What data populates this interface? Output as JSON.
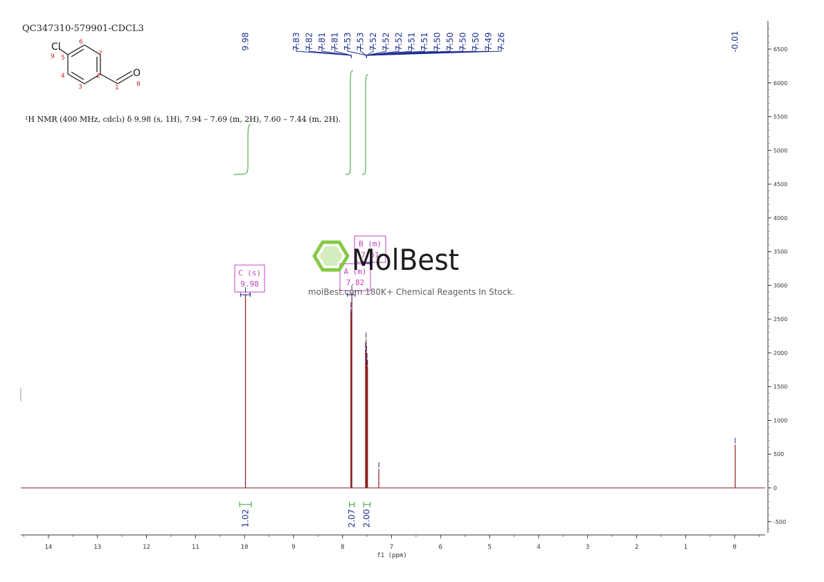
{
  "sample_id": "QC347310-579901-CDCL3",
  "structure": {
    "atoms": {
      "cl": "Cl",
      "o": "O"
    },
    "numbers": [
      "1",
      "2",
      "3",
      "4",
      "5",
      "6",
      "7",
      "8",
      "9"
    ]
  },
  "nmr_description": "¹H NMR (400 MHz, cdcl₃) δ 9.98 (s, 1H), 7.94 – 7.69 (m, 2H), 7.60 – 7.44 (m, 2H).",
  "watermark": {
    "brand": "MolBest",
    "tagline": "molBest.com 180K+ Chemical Reagents In Stock."
  },
  "colors": {
    "spectrum": "#8b1a1a",
    "integral": "#2e9d2e",
    "peak_label": "#1f2f8f",
    "multiplet": "#c040c0",
    "atom_number": "#cc2222",
    "logo": "#7ec93a"
  },
  "chart_data": {
    "type": "line",
    "xlabel": "f1 (ppm)",
    "xlim": [
      14.6,
      -0.6
    ],
    "ylim": [
      -700,
      6900
    ],
    "x_ticks": [
      14,
      13,
      12,
      11,
      10,
      9,
      8,
      7,
      6,
      5,
      4,
      3,
      2,
      1,
      0
    ],
    "y_ticks": [
      -500,
      0,
      500,
      1000,
      1500,
      2000,
      2500,
      3000,
      3500,
      4000,
      4500,
      5000,
      5500,
      6000,
      6500
    ],
    "series": [
      {
        "peaks": [
          {
            "ppm": 9.98,
            "height": 2870
          },
          {
            "ppm": 7.83,
            "height": 2650
          },
          {
            "ppm": 7.82,
            "height": 2500
          },
          {
            "ppm": 7.81,
            "height": 2900
          },
          {
            "ppm": 7.53,
            "height": 2050
          },
          {
            "ppm": 7.52,
            "height": 2200
          },
          {
            "ppm": 7.51,
            "height": 2000
          },
          {
            "ppm": 7.5,
            "height": 1900
          },
          {
            "ppm": 7.49,
            "height": 1800
          },
          {
            "ppm": 7.26,
            "height": 280
          },
          {
            "ppm": -0.01,
            "height": 640
          }
        ]
      }
    ],
    "peak_labels": {
      "group1": [
        "9.98"
      ],
      "group2": [
        "7.83",
        "7.82",
        "7.81",
        "7.81",
        "7.53",
        "7.53",
        "7.52",
        "7.52",
        "7.52",
        "7.51",
        "7.51",
        "7.50",
        "7.50",
        "7.50",
        "7.50",
        "7.49",
        "7.26"
      ],
      "group3": [
        "-0.01"
      ]
    },
    "multiplets": [
      {
        "label": "C (s)",
        "value": "9.98",
        "range": [
          10.08,
          9.88
        ]
      },
      {
        "label": "A (m)",
        "value": "7.82",
        "range": [
          7.9,
          7.74
        ]
      },
      {
        "label": "B (m)",
        "value": "7.51",
        "range": [
          7.58,
          7.44
        ]
      }
    ],
    "integrals": [
      {
        "value": "1.02",
        "from": 10.1,
        "to": 9.86
      },
      {
        "value": "2.07",
        "from": 7.86,
        "to": 7.76
      },
      {
        "value": "2.00",
        "from": 7.57,
        "to": 7.44
      }
    ]
  }
}
